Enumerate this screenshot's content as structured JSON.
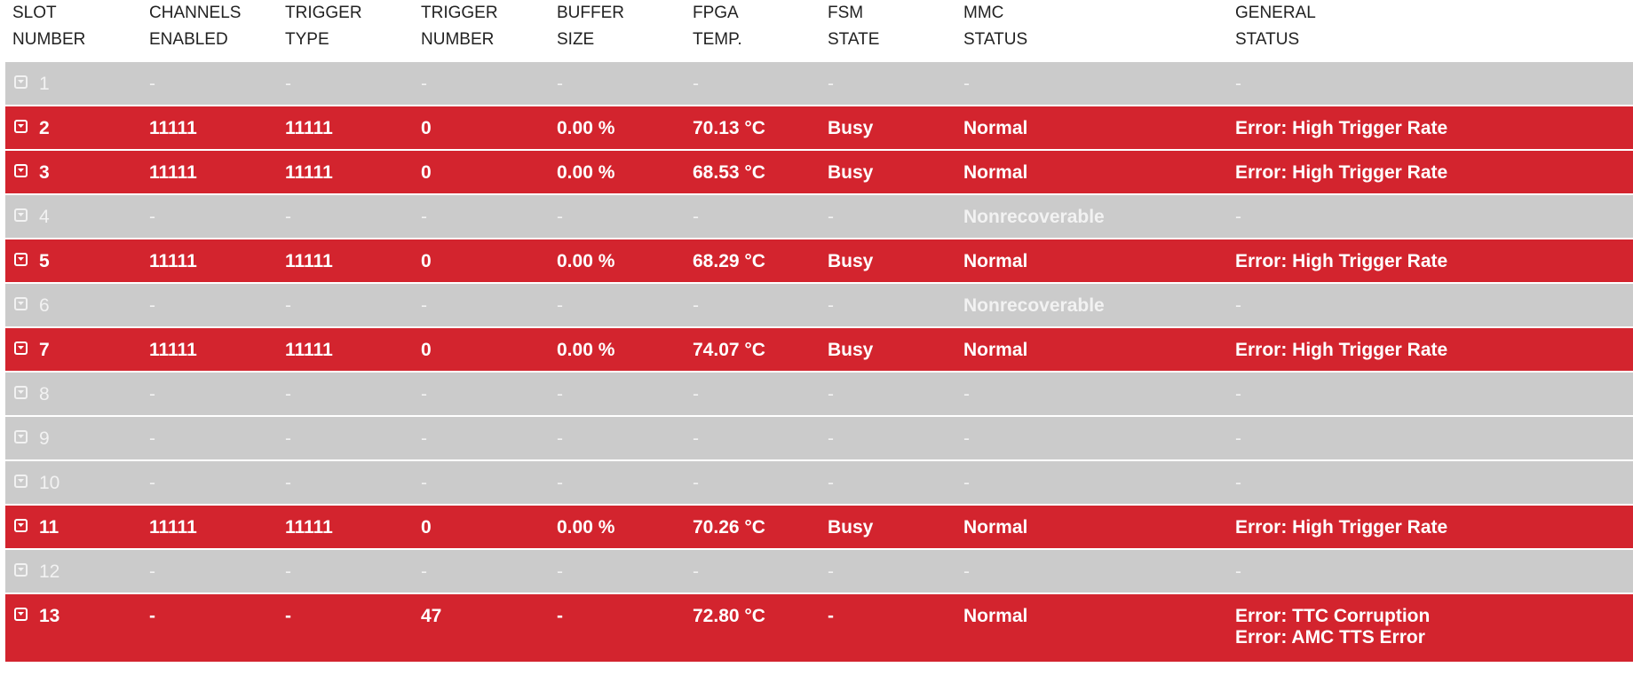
{
  "headers": [
    [
      "SLOT",
      "NUMBER"
    ],
    [
      "CHANNELS",
      "ENABLED"
    ],
    [
      "TRIGGER",
      "TYPE"
    ],
    [
      "TRIGGER",
      "NUMBER"
    ],
    [
      "BUFFER",
      "SIZE"
    ],
    [
      "FPGA",
      "TEMP."
    ],
    [
      "FSM",
      "STATE"
    ],
    [
      "MMC",
      "STATUS"
    ],
    [
      "GENERAL",
      "STATUS"
    ]
  ],
  "rows": [
    {
      "slot": "1",
      "state": "gray",
      "channels": "-",
      "trigger_type": "-",
      "trigger_number": "-",
      "buffer": "-",
      "temp": "-",
      "fsm": "-",
      "mmc": "-",
      "general": [
        "-"
      ]
    },
    {
      "slot": "2",
      "state": "red",
      "channels": "11111",
      "trigger_type": "11111",
      "trigger_number": "0",
      "buffer": "0.00 %",
      "temp": "70.13 °C",
      "fsm": "Busy",
      "mmc": "Normal",
      "general": [
        "Error: High Trigger Rate"
      ]
    },
    {
      "slot": "3",
      "state": "red",
      "channels": "11111",
      "trigger_type": "11111",
      "trigger_number": "0",
      "buffer": "0.00 %",
      "temp": "68.53 °C",
      "fsm": "Busy",
      "mmc": "Normal",
      "general": [
        "Error: High Trigger Rate"
      ]
    },
    {
      "slot": "4",
      "state": "gray",
      "channels": "-",
      "trigger_type": "-",
      "trigger_number": "-",
      "buffer": "-",
      "temp": "-",
      "fsm": "-",
      "mmc": "Nonrecoverable",
      "general": [
        "-"
      ]
    },
    {
      "slot": "5",
      "state": "red",
      "channels": "11111",
      "trigger_type": "11111",
      "trigger_number": "0",
      "buffer": "0.00 %",
      "temp": "68.29 °C",
      "fsm": "Busy",
      "mmc": "Normal",
      "general": [
        "Error: High Trigger Rate"
      ]
    },
    {
      "slot": "6",
      "state": "gray",
      "channels": "-",
      "trigger_type": "-",
      "trigger_number": "-",
      "buffer": "-",
      "temp": "-",
      "fsm": "-",
      "mmc": "Nonrecoverable",
      "general": [
        "-"
      ]
    },
    {
      "slot": "7",
      "state": "red",
      "channels": "11111",
      "trigger_type": "11111",
      "trigger_number": "0",
      "buffer": "0.00 %",
      "temp": "74.07 °C",
      "fsm": "Busy",
      "mmc": "Normal",
      "general": [
        "Error: High Trigger Rate"
      ]
    },
    {
      "slot": "8",
      "state": "gray",
      "channels": "-",
      "trigger_type": "-",
      "trigger_number": "-",
      "buffer": "-",
      "temp": "-",
      "fsm": "-",
      "mmc": "-",
      "general": [
        "-"
      ]
    },
    {
      "slot": "9",
      "state": "gray",
      "channels": "-",
      "trigger_type": "-",
      "trigger_number": "-",
      "buffer": "-",
      "temp": "-",
      "fsm": "-",
      "mmc": "-",
      "general": [
        "-"
      ]
    },
    {
      "slot": "10",
      "state": "gray",
      "channels": "-",
      "trigger_type": "-",
      "trigger_number": "-",
      "buffer": "-",
      "temp": "-",
      "fsm": "-",
      "mmc": "-",
      "general": [
        "-"
      ]
    },
    {
      "slot": "11",
      "state": "red",
      "channels": "11111",
      "trigger_type": "11111",
      "trigger_number": "0",
      "buffer": "0.00 %",
      "temp": "70.26 °C",
      "fsm": "Busy",
      "mmc": "Normal",
      "general": [
        "Error: High Trigger Rate"
      ]
    },
    {
      "slot": "12",
      "state": "gray",
      "channels": "-",
      "trigger_type": "-",
      "trigger_number": "-",
      "buffer": "-",
      "temp": "-",
      "fsm": "-",
      "mmc": "-",
      "general": [
        "-"
      ]
    },
    {
      "slot": "13",
      "state": "red",
      "channels": "-",
      "trigger_type": "-",
      "trigger_number": "47",
      "buffer": "-",
      "temp": "72.80 °C",
      "fsm": "-",
      "mmc": "Normal",
      "general": [
        "Error: TTC Corruption",
        "Error: AMC TTS Error"
      ]
    }
  ],
  "colors": {
    "error_row": "#d3242e",
    "inactive_row": "#cbcbcb",
    "header_text": "#222222"
  }
}
